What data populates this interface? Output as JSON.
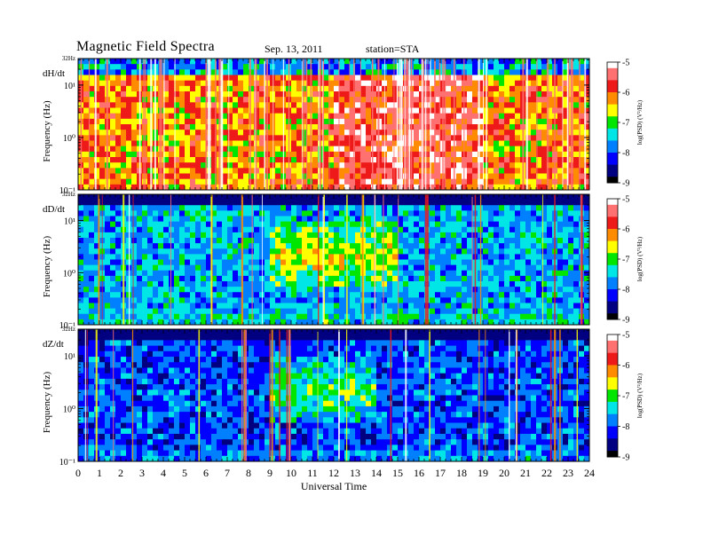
{
  "header": {
    "title": "Magnetic  Field  Spectra",
    "date": "Sep. 13, 2011",
    "station": "station=STA"
  },
  "colors": {
    "colormap": [
      "#ffffff",
      "#ff7070",
      "#ee1a1a",
      "#ff8c00",
      "#ffff00",
      "#00e600",
      "#00e6e6",
      "#0080ff",
      "#0000ff",
      "#000080",
      "#000000"
    ],
    "axis": "#000000"
  },
  "chart_data": [
    {
      "type": "heatmap",
      "panel_label": "dH/dt",
      "ylabel": "Frequency  (Hz)",
      "ytick_labels": [
        "32Hz",
        "10¹",
        "10⁰",
        "10⁻¹"
      ],
      "y_scale": "log",
      "ylim": [
        0.1,
        32
      ],
      "colorbar": {
        "label": "log(PSD) (V²/Hz)",
        "ticks": [
          "-5",
          "-6",
          "-7",
          "-8",
          "-9"
        ],
        "range": [
          -9,
          -5
        ]
      },
      "description_values": {
        "dominant_level": -5.5,
        "active_window_ut": [
          12,
          19
        ]
      }
    },
    {
      "type": "heatmap",
      "panel_label": "dD/dt",
      "ylabel": "Frequency  (Hz)",
      "ytick_labels": [
        "32Hz",
        "10¹",
        "10⁰",
        "10⁻¹"
      ],
      "y_scale": "log",
      "ylim": [
        0.1,
        32
      ],
      "colorbar": {
        "label": "log(PSD) (V²/Hz)",
        "ticks": [
          "-5",
          "-6",
          "-7",
          "-8",
          "-9"
        ],
        "range": [
          -9,
          -5
        ]
      },
      "description_values": {
        "dominant_level": -7.8,
        "active_window_ut": [
          9,
          15
        ]
      }
    },
    {
      "type": "heatmap",
      "panel_label": "dZ/dt",
      "ylabel": "Frequency  (Hz)",
      "ytick_labels": [
        "32Hz",
        "10¹",
        "10⁰",
        "10⁻¹"
      ],
      "y_scale": "log",
      "ylim": [
        0.1,
        32
      ],
      "colorbar": {
        "label": "log(PSD) (V²/Hz)",
        "ticks": [
          "-5",
          "-6",
          "-7",
          "-8",
          "-9"
        ],
        "range": [
          -9,
          -5
        ]
      },
      "description_values": {
        "dominant_level": -8.2,
        "active_window_ut": [
          9,
          14
        ]
      }
    }
  ],
  "x_axis": {
    "label": "Universal Time",
    "range": [
      0,
      24
    ],
    "ticks": [
      "0",
      "1",
      "2",
      "3",
      "4",
      "5",
      "6",
      "7",
      "8",
      "9",
      "10",
      "11",
      "12",
      "13",
      "14",
      "15",
      "16",
      "17",
      "18",
      "19",
      "20",
      "21",
      "22",
      "23",
      "24"
    ]
  }
}
